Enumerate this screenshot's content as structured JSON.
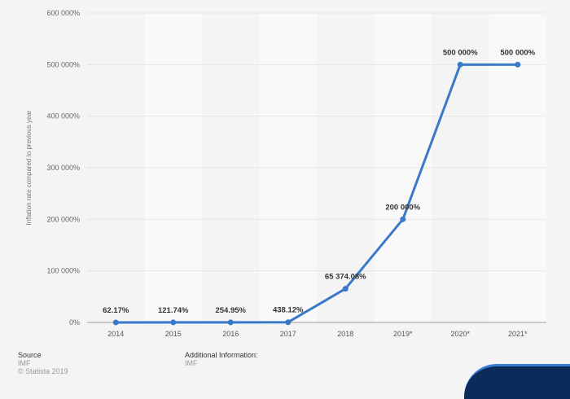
{
  "chart_data": {
    "type": "line",
    "title": "",
    "xlabel": "",
    "ylabel": "Inflation rate compared to previous year",
    "categories": [
      "2014",
      "2015",
      "2016",
      "2017",
      "2018",
      "2019*",
      "2020*",
      "2021*"
    ],
    "values": [
      62.17,
      121.74,
      254.95,
      438.12,
      65374.08,
      200000,
      500000,
      500000
    ],
    "data_labels": [
      "62.17%",
      "121.74%",
      "254.95%",
      "438.12%",
      "65 374.08%",
      "200 000%",
      "500 000%",
      "500 000%"
    ],
    "yticks": [
      0,
      100000,
      200000,
      300000,
      400000,
      500000,
      600000
    ],
    "ytick_labels": [
      "0%",
      "100 000%",
      "200 000%",
      "300 000%",
      "400 000%",
      "500 000%",
      "600 000%"
    ],
    "ylim": [
      0,
      600000
    ],
    "grid": true,
    "color": "#3a78c9"
  },
  "footer": {
    "source_label": "Source",
    "source_value": "IMF",
    "copyright": "© Statista 2019",
    "additional_label": "Additional Information:",
    "additional_value": "IMF"
  }
}
